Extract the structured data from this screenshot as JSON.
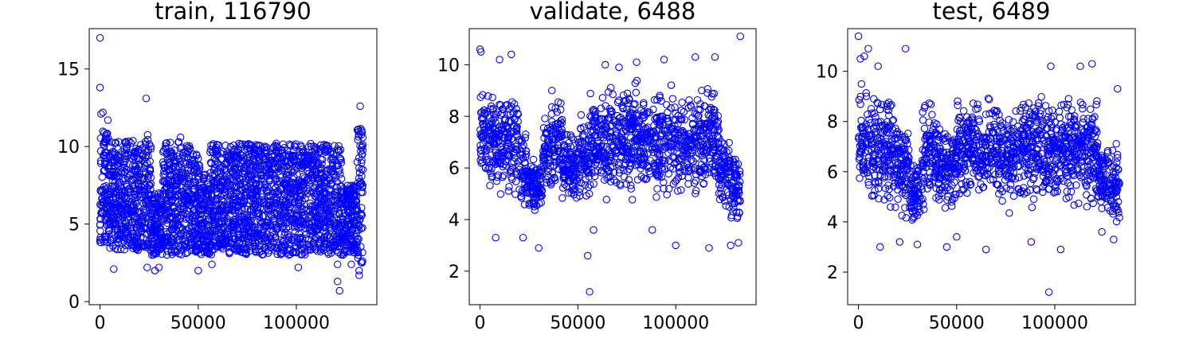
{
  "chart_data": [
    {
      "type": "scatter",
      "title": "train, 116790",
      "xlabel": "",
      "ylabel": "",
      "xlim": [
        -5500,
        141000
      ],
      "ylim": [
        -0.2,
        17.6
      ],
      "x_ticks": [
        {
          "value": 0,
          "label": "0"
        },
        {
          "value": 50000,
          "label": "50000"
        },
        {
          "value": 100000,
          "label": "100000"
        }
      ],
      "y_ticks": [
        {
          "value": 0,
          "label": "0"
        },
        {
          "value": 5,
          "label": "5"
        },
        {
          "value": 10,
          "label": "10"
        },
        {
          "value": 15,
          "label": "15"
        }
      ],
      "marker": "open-circle",
      "color": "#0000ff",
      "grid": false,
      "density_bands": [
        {
          "x": [
            0,
            5000
          ],
          "low": 3.8,
          "high": 11.0
        },
        {
          "x": [
            5000,
            24000
          ],
          "low": 3.3,
          "high": 10.4
        },
        {
          "x": [
            24000,
            26000
          ],
          "low": 3.2,
          "high": 11.2
        },
        {
          "x": [
            26000,
            32000
          ],
          "low": 3.0,
          "high": 7.0
        },
        {
          "x": [
            32000,
            46000
          ],
          "low": 3.0,
          "high": 10.3
        },
        {
          "x": [
            46000,
            51000
          ],
          "low": 3.2,
          "high": 9.5
        },
        {
          "x": [
            51000,
            56000
          ],
          "low": 3.0,
          "high": 8.3
        },
        {
          "x": [
            56000,
            123000
          ],
          "low": 3.0,
          "high": 10.2
        },
        {
          "x": [
            123000,
            131000
          ],
          "low": 3.0,
          "high": 7.5
        },
        {
          "x": [
            131000,
            134000
          ],
          "low": 2.5,
          "high": 11.2
        }
      ],
      "outliers": [
        {
          "x": 0,
          "y": 17.0
        },
        {
          "x": 0,
          "y": 13.8
        },
        {
          "x": 500,
          "y": 12.1
        },
        {
          "x": 1500,
          "y": 12.2
        },
        {
          "x": 4000,
          "y": 11.7
        },
        {
          "x": 23500,
          "y": 13.1
        },
        {
          "x": 7000,
          "y": 2.1
        },
        {
          "x": 28000,
          "y": 2.0
        },
        {
          "x": 24000,
          "y": 2.2
        },
        {
          "x": 30000,
          "y": 2.2
        },
        {
          "x": 41000,
          "y": 10.6
        },
        {
          "x": 50000,
          "y": 2.0
        },
        {
          "x": 57000,
          "y": 2.4
        },
        {
          "x": 101000,
          "y": 2.2
        },
        {
          "x": 121000,
          "y": 2.4
        },
        {
          "x": 128000,
          "y": 2.4
        },
        {
          "x": 132000,
          "y": 1.7
        },
        {
          "x": 132000,
          "y": 2.0
        },
        {
          "x": 121000,
          "y": 1.3
        },
        {
          "x": 122000,
          "y": 0.7
        },
        {
          "x": 132500,
          "y": 12.6
        }
      ]
    },
    {
      "type": "scatter",
      "title": "validate, 6488",
      "xlabel": "",
      "ylabel": "",
      "xlim": [
        -5500,
        141000
      ],
      "ylim": [
        0.7,
        11.4
      ],
      "x_ticks": [
        {
          "value": 0,
          "label": "0"
        },
        {
          "value": 50000,
          "label": "50000"
        },
        {
          "value": 100000,
          "label": "100000"
        }
      ],
      "y_ticks": [
        {
          "value": 2,
          "label": "2"
        },
        {
          "value": 4,
          "label": "4"
        },
        {
          "value": 6,
          "label": "6"
        },
        {
          "value": 8,
          "label": "8"
        },
        {
          "value": 10,
          "label": "10"
        }
      ],
      "marker": "open-circle",
      "color": "#0000ff",
      "grid": false,
      "density_bands": [
        {
          "x": [
            0,
            5000
          ],
          "low": 4.6,
          "high": 9.8
        },
        {
          "x": [
            5000,
            20000
          ],
          "low": 4.3,
          "high": 9.5
        },
        {
          "x": [
            20000,
            24000
          ],
          "low": 3.8,
          "high": 8.5
        },
        {
          "x": [
            24000,
            32000
          ],
          "low": 4.0,
          "high": 6.5
        },
        {
          "x": [
            32000,
            36000
          ],
          "low": 5.0,
          "high": 8.5
        },
        {
          "x": [
            36000,
            42000
          ],
          "low": 4.5,
          "high": 9.3
        },
        {
          "x": [
            42000,
            50000
          ],
          "low": 4.3,
          "high": 7.8
        },
        {
          "x": [
            50000,
            56000
          ],
          "low": 4.2,
          "high": 8.5
        },
        {
          "x": [
            56000,
            122000
          ],
          "low": 4.5,
          "high": 9.6
        },
        {
          "x": [
            122000,
            128000
          ],
          "low": 4.2,
          "high": 7.5
        },
        {
          "x": [
            128000,
            133000
          ],
          "low": 3.5,
          "high": 7.0
        }
      ],
      "outliers": [
        {
          "x": 0,
          "y": 10.6
        },
        {
          "x": 500,
          "y": 10.5
        },
        {
          "x": 8000,
          "y": 3.3
        },
        {
          "x": 16000,
          "y": 10.4
        },
        {
          "x": 10000,
          "y": 10.2
        },
        {
          "x": 22000,
          "y": 3.3
        },
        {
          "x": 30000,
          "y": 2.9
        },
        {
          "x": 55000,
          "y": 2.6
        },
        {
          "x": 56000,
          "y": 1.2
        },
        {
          "x": 58000,
          "y": 3.6
        },
        {
          "x": 80000,
          "y": 10.1
        },
        {
          "x": 94000,
          "y": 10.2
        },
        {
          "x": 100000,
          "y": 3.0
        },
        {
          "x": 110000,
          "y": 10.3
        },
        {
          "x": 117000,
          "y": 2.9
        },
        {
          "x": 120000,
          "y": 10.3
        },
        {
          "x": 128000,
          "y": 3.0
        },
        {
          "x": 132000,
          "y": 3.1
        },
        {
          "x": 133000,
          "y": 11.1
        },
        {
          "x": 64000,
          "y": 10.0
        },
        {
          "x": 71000,
          "y": 9.9
        },
        {
          "x": 88000,
          "y": 3.6
        }
      ]
    },
    {
      "type": "scatter",
      "title": "test, 6489",
      "xlabel": "",
      "ylabel": "",
      "xlim": [
        -5500,
        141000
      ],
      "ylim": [
        0.7,
        11.7
      ],
      "x_ticks": [
        {
          "value": 0,
          "label": "0"
        },
        {
          "value": 50000,
          "label": "50000"
        },
        {
          "value": 100000,
          "label": "100000"
        }
      ],
      "y_ticks": [
        {
          "value": 2,
          "label": "2"
        },
        {
          "value": 4,
          "label": "4"
        },
        {
          "value": 6,
          "label": "6"
        },
        {
          "value": 8,
          "label": "8"
        },
        {
          "value": 10,
          "label": "10"
        }
      ],
      "marker": "open-circle",
      "color": "#0000ff",
      "grid": false,
      "density_bands": [
        {
          "x": [
            0,
            5000
          ],
          "low": 4.2,
          "high": 10.2
        },
        {
          "x": [
            5000,
            20000
          ],
          "low": 4.0,
          "high": 9.6
        },
        {
          "x": [
            20000,
            26000
          ],
          "low": 3.8,
          "high": 8.5
        },
        {
          "x": [
            26000,
            32000
          ],
          "low": 3.6,
          "high": 6.8
        },
        {
          "x": [
            32000,
            40000
          ],
          "low": 4.2,
          "high": 9.3
        },
        {
          "x": [
            40000,
            50000
          ],
          "low": 4.0,
          "high": 8.3
        },
        {
          "x": [
            50000,
            122000
          ],
          "low": 4.2,
          "high": 9.5
        },
        {
          "x": [
            122000,
            128000
          ],
          "low": 4.0,
          "high": 7.5
        },
        {
          "x": [
            128000,
            133000
          ],
          "low": 3.3,
          "high": 7.2
        }
      ],
      "outliers": [
        {
          "x": 0,
          "y": 11.4
        },
        {
          "x": 1000,
          "y": 10.5
        },
        {
          "x": 3000,
          "y": 10.6
        },
        {
          "x": 5000,
          "y": 10.9
        },
        {
          "x": 10000,
          "y": 10.2
        },
        {
          "x": 24000,
          "y": 10.9
        },
        {
          "x": 11000,
          "y": 3.0
        },
        {
          "x": 21000,
          "y": 3.2
        },
        {
          "x": 30000,
          "y": 3.1
        },
        {
          "x": 45000,
          "y": 3.0
        },
        {
          "x": 50000,
          "y": 3.4
        },
        {
          "x": 65000,
          "y": 2.9
        },
        {
          "x": 88000,
          "y": 3.2
        },
        {
          "x": 97000,
          "y": 1.2
        },
        {
          "x": 98000,
          "y": 10.2
        },
        {
          "x": 103000,
          "y": 2.9
        },
        {
          "x": 113000,
          "y": 10.2
        },
        {
          "x": 119000,
          "y": 10.3
        },
        {
          "x": 130000,
          "y": 3.3
        },
        {
          "x": 124000,
          "y": 3.6
        },
        {
          "x": 132000,
          "y": 9.3
        }
      ]
    }
  ]
}
